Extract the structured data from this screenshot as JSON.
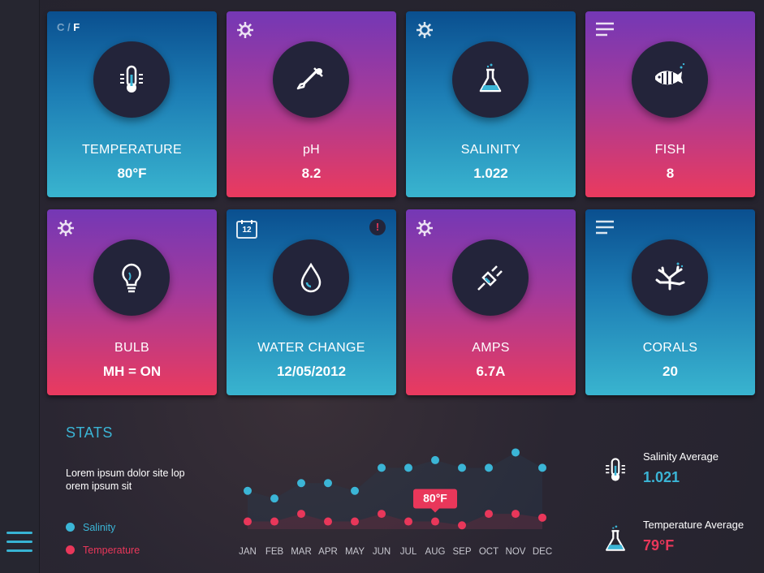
{
  "colors": {
    "blue_accent": "#3bb5d6",
    "red_accent": "#e9375a",
    "panel_dark": "#23243a"
  },
  "cards": [
    {
      "label": "TEMPERATURE",
      "value": "80°F",
      "icon": "thermometer-icon",
      "unit_toggle": {
        "c": "C",
        "sep": "/",
        "f": "F"
      }
    },
    {
      "label": "pH",
      "value": "8.2",
      "icon": "dropper-icon"
    },
    {
      "label": "SALINITY",
      "value": "1.022",
      "icon": "flask-icon"
    },
    {
      "label": "FISH",
      "value": "8",
      "icon": "fish-icon"
    },
    {
      "label": "BULB",
      "value": "MH = ON",
      "icon": "bulb-icon"
    },
    {
      "label": "WATER CHANGE",
      "value": "12/05/2012",
      "icon": "water-drop-icon",
      "calendar_day": "12",
      "alert": "!"
    },
    {
      "label": "AMPS",
      "value": "6.7A",
      "icon": "plug-icon"
    },
    {
      "label": "CORALS",
      "value": "20",
      "icon": "coral-icon"
    }
  ],
  "stats": {
    "title": "STATS",
    "description": "Lorem ipsum dolor site lop orem ipsum sit",
    "legend": [
      {
        "name": "Salinity",
        "color": "#3bb5d6"
      },
      {
        "name": "Temperature",
        "color": "#e9375a"
      }
    ],
    "salinity_average": {
      "label": "Salinity Average",
      "value": "1.021"
    },
    "temperature_average": {
      "label": "Temperature Average",
      "value": "79°F"
    }
  },
  "chart_data": {
    "type": "scatter",
    "categories": [
      "JAN",
      "FEB",
      "MAR",
      "APR",
      "MAY",
      "JUN",
      "JUL",
      "AUG",
      "SEP",
      "OCT",
      "NOV",
      "DEC"
    ],
    "series": [
      {
        "name": "Salinity",
        "values": [
          5,
          4,
          6,
          6,
          5,
          8,
          8,
          9,
          8,
          8,
          10,
          8
        ]
      },
      {
        "name": "Temperature",
        "values": [
          1,
          1,
          2,
          1,
          1,
          2,
          1,
          1,
          0.5,
          2,
          2,
          1.5
        ]
      }
    ],
    "tooltip": {
      "category": "AUG",
      "text": "80°F"
    },
    "ylim": [
      0,
      11
    ]
  }
}
